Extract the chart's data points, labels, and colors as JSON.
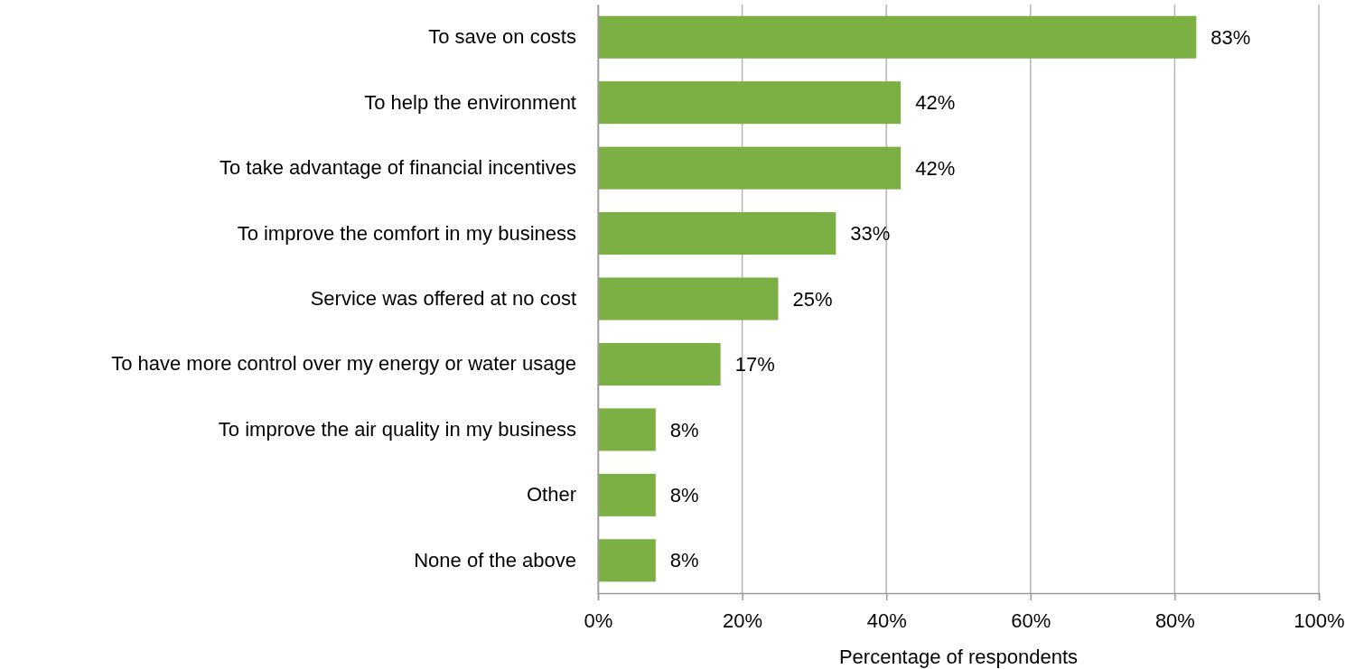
{
  "chart_data": {
    "type": "bar",
    "orientation": "horizontal",
    "xlabel": "Percentage of respondents",
    "categories": [
      "To save on costs",
      "To help the environment",
      "To take advantage of financial incentives",
      "To improve the comfort in my business",
      "Service was offered at no cost",
      "To have more control over my energy or water usage",
      "To improve the air quality in my business",
      "Other",
      "None of the above"
    ],
    "values": [
      83,
      42,
      42,
      33,
      25,
      17,
      8,
      8,
      8
    ],
    "value_labels": [
      "83%",
      "42%",
      "42%",
      "33%",
      "25%",
      "17%",
      "8%",
      "8%",
      "8%"
    ],
    "color": "#7cb044",
    "xlim": [
      0,
      100
    ],
    "xticks": [
      {
        "value": 0,
        "label": "0%"
      },
      {
        "value": 20,
        "label": "20%"
      },
      {
        "value": 40,
        "label": "40%"
      },
      {
        "value": 60,
        "label": "60%"
      },
      {
        "value": 80,
        "label": "80%"
      },
      {
        "value": 100,
        "label": "100%"
      }
    ],
    "grid": "x"
  }
}
